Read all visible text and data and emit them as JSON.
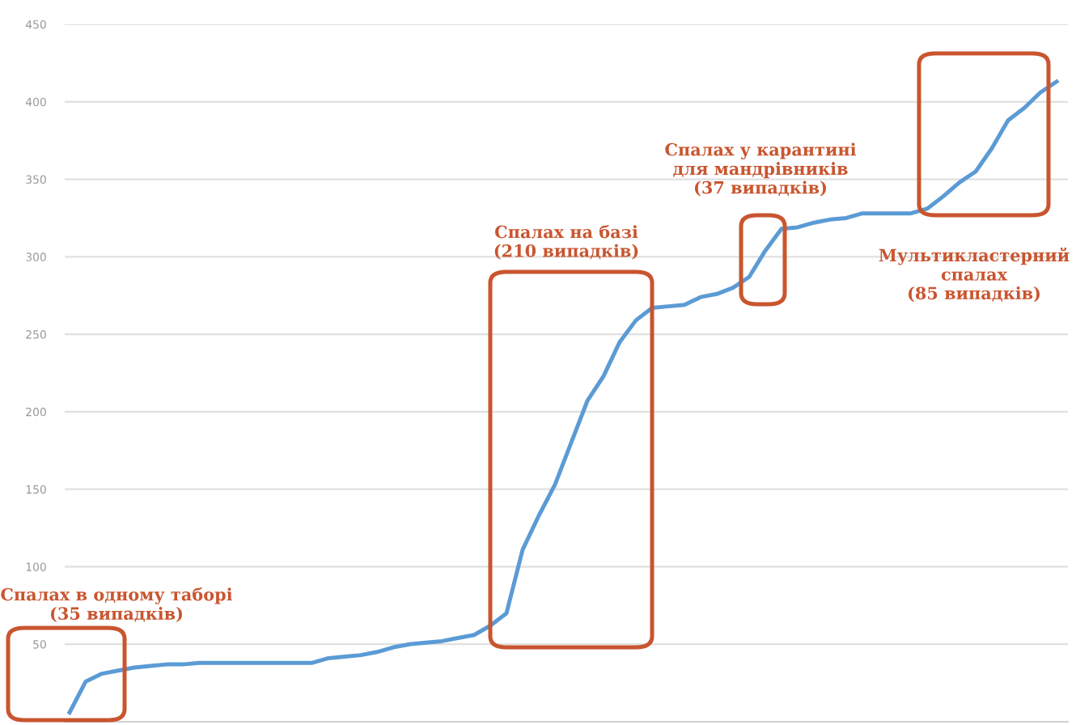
{
  "chart_data": {
    "type": "line",
    "categories": [
      null,
      null,
      null,
      null,
      null,
      null,
      null,
      null,
      null,
      null,
      null,
      null,
      null,
      null,
      null,
      null,
      null,
      null,
      null,
      null,
      null,
      null,
      null,
      null,
      null,
      null,
      null,
      null,
      null,
      null,
      null,
      null,
      null,
      null,
      null,
      null,
      null,
      null,
      null,
      null,
      null,
      null,
      null,
      null,
      null,
      null,
      null,
      null,
      null,
      null,
      null,
      null,
      null,
      null,
      null,
      null,
      null,
      null,
      null,
      null,
      null,
      null
    ],
    "series": [
      {
        "color": "#5b9bd5",
        "values": [
          6,
          26,
          31,
          33,
          35,
          36,
          37,
          37,
          38,
          38,
          38,
          38,
          38,
          38,
          38,
          38,
          41,
          42,
          43,
          45,
          48,
          50,
          51,
          52,
          54,
          56,
          62,
          70,
          111,
          133,
          153,
          180,
          207,
          223,
          245,
          259,
          267,
          268,
          269,
          274,
          276,
          280,
          287,
          304,
          318,
          319,
          322,
          324,
          325,
          328,
          328,
          328,
          328,
          331,
          339,
          348,
          355,
          370,
          388,
          396,
          406,
          413
        ]
      }
    ],
    "ylim": [
      0,
      450
    ],
    "yticks": [
      50,
      100,
      150,
      200,
      250,
      300,
      350,
      400,
      450
    ],
    "grid": "y",
    "marker": "none",
    "line_style": "solid",
    "annotations": [
      "Спалах в одному таборі\n(35 випадків)",
      "Спалах на базі\n(210 випадків)",
      "Спалах у карантині\nдля мандрівників\n(37 випадків)",
      "Мультикластерний\nспалах\n(85 випадків)"
    ]
  }
}
